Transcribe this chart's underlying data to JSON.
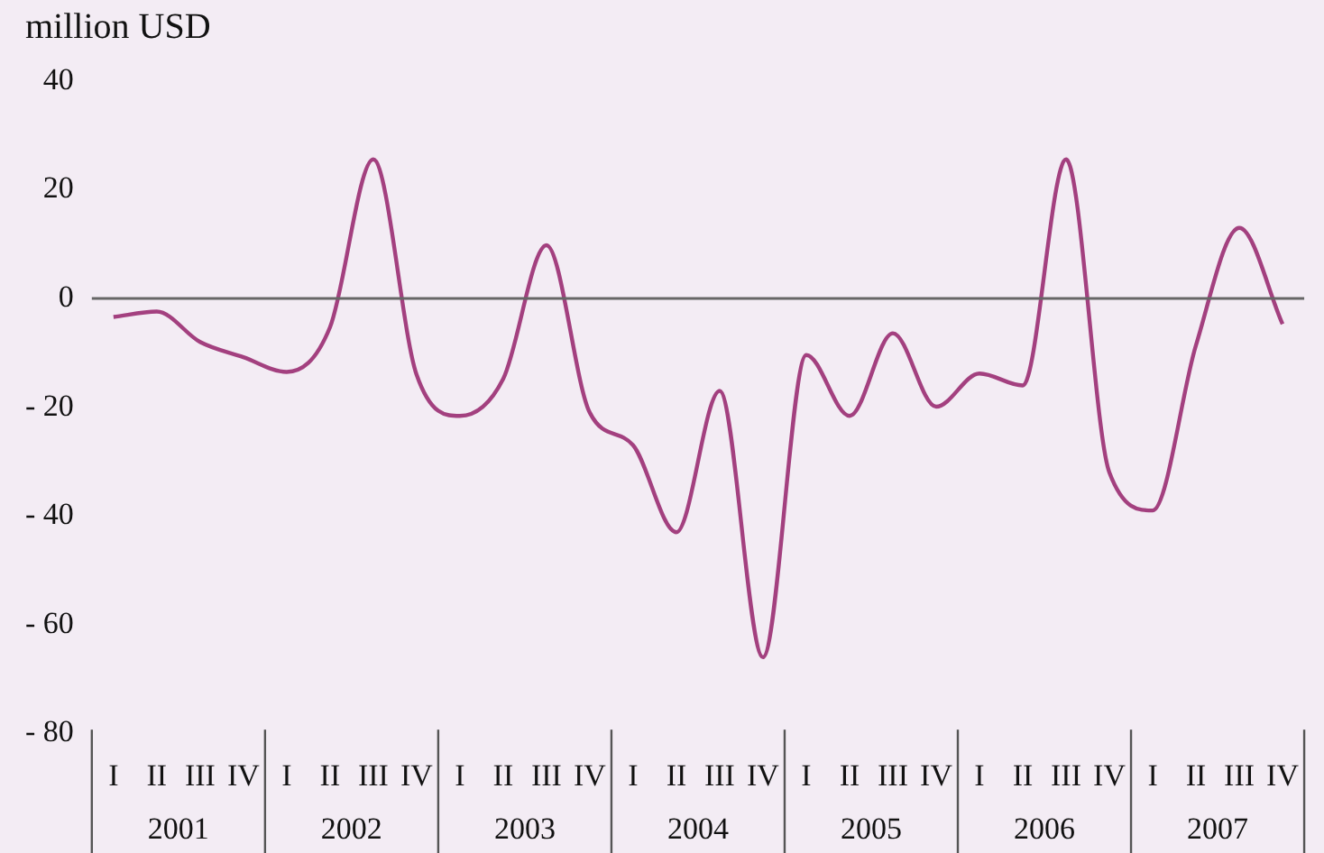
{
  "chart_data": {
    "type": "line",
    "ylabel": "million USD",
    "categories": [
      "I",
      "II",
      "III",
      "IV",
      "I",
      "II",
      "III",
      "IV",
      "I",
      "II",
      "III",
      "IV",
      "I",
      "II",
      "III",
      "IV",
      "I",
      "II",
      "III",
      "IV",
      "I",
      "II",
      "III",
      "IV",
      "I",
      "II",
      "III",
      "IV"
    ],
    "annotations": [
      "2001",
      "2002",
      "2003",
      "2004",
      "2005",
      "2006",
      "2007"
    ],
    "series": [
      {
        "color": "#a3407f",
        "values": [
          -3.4,
          -2.4,
          -8,
          -10.8,
          -13.5,
          -5.3,
          25.6,
          -14,
          -21.6,
          -14.8,
          9.8,
          -21,
          -27,
          -43,
          -17,
          -66,
          -10.4,
          -21.6,
          -6.4,
          -19.9,
          -13.8,
          -16,
          25.6,
          -32,
          -39,
          -8.6,
          13,
          -4.7
        ]
      }
    ],
    "ylim": [
      -80,
      40
    ],
    "yticks": [
      {
        "value": -80,
        "label": "- 80"
      },
      {
        "value": -60,
        "label": "- 60"
      },
      {
        "value": -40,
        "label": "- 40"
      },
      {
        "value": -20,
        "label": "- 20"
      },
      0,
      20,
      40
    ],
    "ref_lines": [
      {
        "axis": "y",
        "value": 0,
        "color": "#666666"
      }
    ],
    "grid": false,
    "legend": false,
    "marker": "none",
    "line_style": "solid"
  }
}
